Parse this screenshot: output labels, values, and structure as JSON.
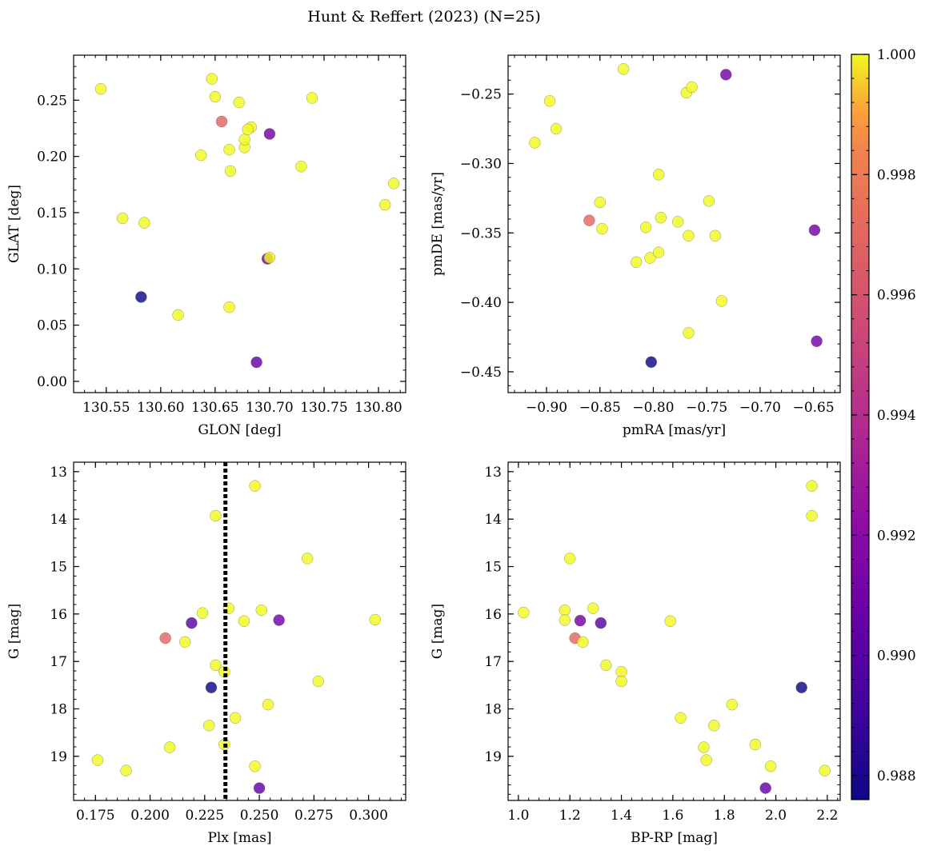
{
  "figure": {
    "title": "Hunt & Reffert (2023) (N=25)"
  },
  "colorbar": {
    "min": 0.9876,
    "max": 1.0,
    "ticks": [
      0.988,
      0.99,
      0.992,
      0.994,
      0.996,
      0.998,
      1.0
    ],
    "tick_labels": [
      "0.988",
      "0.990",
      "0.992",
      "0.994",
      "0.996",
      "0.998",
      "1.000"
    ],
    "colormap": "plasma"
  },
  "chart_data": [
    {
      "type": "scatter",
      "id": "glon-glat",
      "xlabel": "GLON [deg]",
      "ylabel": "GLAT [deg]",
      "xlim": [
        130.52,
        130.825
      ],
      "ylim": [
        -0.01,
        0.29
      ],
      "xticks": [
        130.55,
        130.6,
        130.65,
        130.7,
        130.75,
        130.8
      ],
      "xtick_labels": [
        "130.55",
        "130.60",
        "130.65",
        "130.70",
        "130.75",
        "130.80"
      ],
      "yticks": [
        0.0,
        0.05,
        0.1,
        0.15,
        0.2,
        0.25
      ],
      "ytick_labels": [
        "0.00",
        "0.05",
        "0.10",
        "0.15",
        "0.20",
        "0.25"
      ],
      "invert_y": false,
      "points": [
        {
          "x": 130.545,
          "y": 0.26,
          "c": 1.0
        },
        {
          "x": 130.565,
          "y": 0.145,
          "c": 1.0
        },
        {
          "x": 130.585,
          "y": 0.141,
          "c": 1.0
        },
        {
          "x": 130.582,
          "y": 0.075,
          "c": 0.9876
        },
        {
          "x": 130.616,
          "y": 0.059,
          "c": 1.0
        },
        {
          "x": 130.637,
          "y": 0.201,
          "c": 1.0
        },
        {
          "x": 130.647,
          "y": 0.269,
          "c": 1.0
        },
        {
          "x": 130.65,
          "y": 0.253,
          "c": 1.0
        },
        {
          "x": 130.656,
          "y": 0.231,
          "c": 0.997
        },
        {
          "x": 130.663,
          "y": 0.206,
          "c": 1.0
        },
        {
          "x": 130.664,
          "y": 0.187,
          "c": 1.0
        },
        {
          "x": 130.663,
          "y": 0.066,
          "c": 1.0
        },
        {
          "x": 130.672,
          "y": 0.248,
          "c": 1.0
        },
        {
          "x": 130.677,
          "y": 0.208,
          "c": 1.0
        },
        {
          "x": 130.677,
          "y": 0.215,
          "c": 1.0
        },
        {
          "x": 130.683,
          "y": 0.226,
          "c": 1.0
        },
        {
          "x": 130.68,
          "y": 0.224,
          "c": 1.0
        },
        {
          "x": 130.688,
          "y": 0.017,
          "c": 0.9905
        },
        {
          "x": 130.7,
          "y": 0.22,
          "c": 0.991
        },
        {
          "x": 130.698,
          "y": 0.109,
          "c": 0.991
        },
        {
          "x": 130.7,
          "y": 0.11,
          "c": 1.0
        },
        {
          "x": 130.729,
          "y": 0.191,
          "c": 1.0
        },
        {
          "x": 130.739,
          "y": 0.252,
          "c": 1.0
        },
        {
          "x": 130.806,
          "y": 0.157,
          "c": 1.0
        },
        {
          "x": 130.814,
          "y": 0.176,
          "c": 1.0
        }
      ]
    },
    {
      "type": "scatter",
      "id": "pmra-pmde",
      "xlabel": "pmRA [mas/yr]",
      "ylabel": "pmDE [mas/yr]",
      "xlim": [
        -0.936,
        -0.625
      ],
      "ylim": [
        -0.465,
        -0.222
      ],
      "xticks": [
        -0.9,
        -0.85,
        -0.8,
        -0.75,
        -0.7,
        -0.65
      ],
      "xtick_labels": [
        "−0.90",
        "−0.85",
        "−0.80",
        "−0.75",
        "−0.70",
        "−0.65"
      ],
      "yticks": [
        -0.45,
        -0.4,
        -0.35,
        -0.3,
        -0.25
      ],
      "ytick_labels": [
        "−0.45",
        "−0.40",
        "−0.35",
        "−0.30",
        "−0.25"
      ],
      "invert_y": false,
      "points": [
        {
          "x": -0.911,
          "y": -0.285,
          "c": 1.0
        },
        {
          "x": -0.897,
          "y": -0.255,
          "c": 1.0
        },
        {
          "x": -0.891,
          "y": -0.275,
          "c": 1.0
        },
        {
          "x": -0.86,
          "y": -0.341,
          "c": 0.997
        },
        {
          "x": -0.85,
          "y": -0.328,
          "c": 1.0
        },
        {
          "x": -0.848,
          "y": -0.347,
          "c": 1.0
        },
        {
          "x": -0.828,
          "y": -0.232,
          "c": 1.0
        },
        {
          "x": -0.816,
          "y": -0.371,
          "c": 1.0
        },
        {
          "x": -0.807,
          "y": -0.346,
          "c": 1.0
        },
        {
          "x": -0.803,
          "y": -0.368,
          "c": 1.0
        },
        {
          "x": -0.802,
          "y": -0.443,
          "c": 0.9876
        },
        {
          "x": -0.795,
          "y": -0.308,
          "c": 1.0
        },
        {
          "x": -0.795,
          "y": -0.364,
          "c": 1.0
        },
        {
          "x": -0.793,
          "y": -0.339,
          "c": 1.0
        },
        {
          "x": -0.777,
          "y": -0.342,
          "c": 1.0
        },
        {
          "x": -0.769,
          "y": -0.249,
          "c": 1.0
        },
        {
          "x": -0.767,
          "y": -0.352,
          "c": 1.0
        },
        {
          "x": -0.767,
          "y": -0.422,
          "c": 1.0
        },
        {
          "x": -0.764,
          "y": -0.245,
          "c": 1.0
        },
        {
          "x": -0.748,
          "y": -0.327,
          "c": 1.0
        },
        {
          "x": -0.742,
          "y": -0.352,
          "c": 1.0
        },
        {
          "x": -0.736,
          "y": -0.399,
          "c": 1.0
        },
        {
          "x": -0.732,
          "y": -0.236,
          "c": 0.991
        },
        {
          "x": -0.649,
          "y": -0.348,
          "c": 0.991
        },
        {
          "x": -0.647,
          "y": -0.428,
          "c": 0.991
        }
      ]
    },
    {
      "type": "scatter",
      "id": "plx-g",
      "xlabel": "Plx [mas]",
      "ylabel": "G [mag]",
      "xlim": [
        0.165,
        0.317
      ],
      "ylim": [
        12.8,
        19.93
      ],
      "xticks": [
        0.175,
        0.2,
        0.225,
        0.25,
        0.275,
        0.3
      ],
      "xtick_labels": [
        "0.175",
        "0.200",
        "0.225",
        "0.250",
        "0.275",
        "0.300"
      ],
      "yticks": [
        13,
        14,
        15,
        16,
        17,
        18,
        19
      ],
      "ytick_labels": [
        "13",
        "14",
        "15",
        "16",
        "17",
        "18",
        "19"
      ],
      "invert_y": true,
      "vline": {
        "x": 0.2345
      },
      "points": [
        {
          "x": 0.176,
          "y": 19.08,
          "c": 1.0
        },
        {
          "x": 0.189,
          "y": 19.3,
          "c": 1.0
        },
        {
          "x": 0.207,
          "y": 16.51,
          "c": 0.997
        },
        {
          "x": 0.209,
          "y": 18.81,
          "c": 1.0
        },
        {
          "x": 0.216,
          "y": 16.59,
          "c": 1.0
        },
        {
          "x": 0.219,
          "y": 16.19,
          "c": 0.99
        },
        {
          "x": 0.224,
          "y": 15.98,
          "c": 1.0
        },
        {
          "x": 0.227,
          "y": 18.35,
          "c": 1.0
        },
        {
          "x": 0.228,
          "y": 17.55,
          "c": 0.9876
        },
        {
          "x": 0.23,
          "y": 13.93,
          "c": 1.0
        },
        {
          "x": 0.23,
          "y": 17.08,
          "c": 1.0
        },
        {
          "x": 0.234,
          "y": 18.75,
          "c": 1.0
        },
        {
          "x": 0.234,
          "y": 17.22,
          "c": 1.0
        },
        {
          "x": 0.236,
          "y": 15.88,
          "c": 1.0
        },
        {
          "x": 0.239,
          "y": 18.19,
          "c": 1.0
        },
        {
          "x": 0.243,
          "y": 16.15,
          "c": 1.0
        },
        {
          "x": 0.248,
          "y": 13.3,
          "c": 1.0
        },
        {
          "x": 0.248,
          "y": 19.21,
          "c": 1.0
        },
        {
          "x": 0.251,
          "y": 15.92,
          "c": 1.0
        },
        {
          "x": 0.25,
          "y": 19.67,
          "c": 0.9905
        },
        {
          "x": 0.254,
          "y": 17.91,
          "c": 1.0
        },
        {
          "x": 0.259,
          "y": 16.13,
          "c": 0.991
        },
        {
          "x": 0.272,
          "y": 14.83,
          "c": 1.0
        },
        {
          "x": 0.277,
          "y": 17.42,
          "c": 1.0
        },
        {
          "x": 0.303,
          "y": 16.12,
          "c": 1.0
        }
      ]
    },
    {
      "type": "scatter",
      "id": "bprp-g",
      "xlabel": "BP-RP [mag]",
      "ylabel": "G [mag]",
      "xlim": [
        0.96,
        2.25
      ],
      "ylim": [
        12.8,
        19.93
      ],
      "xticks": [
        1.0,
        1.2,
        1.4,
        1.6,
        1.8,
        2.0,
        2.2
      ],
      "xtick_labels": [
        "1.0",
        "1.2",
        "1.4",
        "1.6",
        "1.8",
        "2.0",
        "2.2"
      ],
      "yticks": [
        13,
        14,
        15,
        16,
        17,
        18,
        19
      ],
      "ytick_labels": [
        "13",
        "14",
        "15",
        "16",
        "17",
        "18",
        "19"
      ],
      "invert_y": true,
      "points": [
        {
          "x": 1.02,
          "y": 15.97,
          "c": 1.0
        },
        {
          "x": 1.18,
          "y": 15.92,
          "c": 1.0
        },
        {
          "x": 1.18,
          "y": 16.13,
          "c": 1.0
        },
        {
          "x": 1.2,
          "y": 14.83,
          "c": 1.0
        },
        {
          "x": 1.22,
          "y": 16.51,
          "c": 0.997
        },
        {
          "x": 1.24,
          "y": 16.14,
          "c": 0.991
        },
        {
          "x": 1.25,
          "y": 16.59,
          "c": 1.0
        },
        {
          "x": 1.29,
          "y": 15.88,
          "c": 1.0
        },
        {
          "x": 1.32,
          "y": 16.19,
          "c": 0.99
        },
        {
          "x": 1.34,
          "y": 17.08,
          "c": 1.0
        },
        {
          "x": 1.4,
          "y": 17.22,
          "c": 1.0
        },
        {
          "x": 1.4,
          "y": 17.42,
          "c": 1.0
        },
        {
          "x": 1.59,
          "y": 16.15,
          "c": 1.0
        },
        {
          "x": 1.63,
          "y": 18.19,
          "c": 1.0
        },
        {
          "x": 1.72,
          "y": 18.81,
          "c": 1.0
        },
        {
          "x": 1.73,
          "y": 19.08,
          "c": 1.0
        },
        {
          "x": 1.76,
          "y": 18.35,
          "c": 1.0
        },
        {
          "x": 1.83,
          "y": 17.91,
          "c": 1.0
        },
        {
          "x": 1.92,
          "y": 18.75,
          "c": 1.0
        },
        {
          "x": 1.96,
          "y": 19.67,
          "c": 0.9905
        },
        {
          "x": 1.98,
          "y": 19.21,
          "c": 1.0
        },
        {
          "x": 2.1,
          "y": 17.55,
          "c": 0.9876
        },
        {
          "x": 2.14,
          "y": 13.3,
          "c": 1.0
        },
        {
          "x": 2.14,
          "y": 13.93,
          "c": 1.0
        },
        {
          "x": 2.19,
          "y": 19.3,
          "c": 1.0
        }
      ]
    }
  ]
}
